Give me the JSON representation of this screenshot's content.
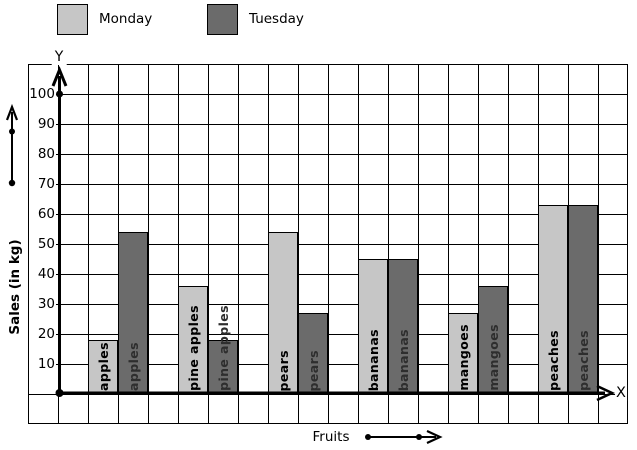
{
  "legend": {
    "position": "top",
    "items": [
      {
        "label": "Monday",
        "color": "#c6c6c6"
      },
      {
        "label": "Tuesday",
        "color": "#6b6b6b"
      }
    ]
  },
  "axes": {
    "y_label": "Sales (in kg)",
    "x_label": "Fruits",
    "y_letter": "Y",
    "x_letter": "X",
    "y_ticks": [
      10,
      20,
      30,
      40,
      50,
      60,
      70,
      80,
      90,
      100
    ]
  },
  "chart_data": {
    "type": "bar",
    "title": "",
    "categories": [
      "apples",
      "pine apples",
      "pears",
      "bananas",
      "mangoes",
      "peaches"
    ],
    "series": [
      {
        "name": "Monday",
        "color": "#c6c6c6",
        "label_color": "#000000",
        "values": [
          18,
          36,
          54,
          45,
          27,
          63
        ]
      },
      {
        "name": "Tuesday",
        "color": "#6b6b6b",
        "label_color": "#2e2e2e",
        "values": [
          54,
          18,
          27,
          45,
          36,
          63
        ]
      }
    ],
    "xlabel": "Fruits",
    "ylabel": "Sales (in kg)",
    "ylim": [
      0,
      110
    ],
    "y_tick_step": 10,
    "grid": true,
    "legend_position": "top",
    "bar_text": "category name written vertically inside each bar"
  }
}
